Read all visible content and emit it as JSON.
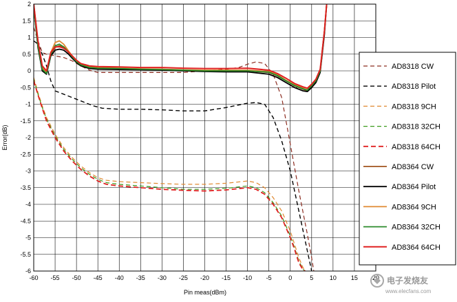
{
  "chart_data": {
    "type": "line",
    "title": "",
    "xlabel": "Pin meas(dBm)",
    "ylabel": "Error(dB)",
    "xlim": [
      -60,
      20
    ],
    "ylim": [
      -6,
      2
    ],
    "x_ticks": [
      -60,
      -55,
      -50,
      -45,
      -40,
      -35,
      -30,
      -25,
      -20,
      -15,
      -10,
      -5,
      0,
      5,
      10,
      15,
      20
    ],
    "x_tick_labels": [
      "-60",
      "-55",
      "-50",
      "-45",
      "-40",
      "-35",
      "-30",
      "-25",
      "-20",
      "-15",
      "-10",
      "-5",
      "0",
      "5",
      "10",
      "15",
      "20"
    ],
    "y_ticks": [
      2,
      1.5,
      1,
      0.5,
      0,
      -0.5,
      -1,
      -1.5,
      -2,
      -2.5,
      -3,
      -3.5,
      -4,
      -4.5,
      -5,
      -5.5,
      -6
    ],
    "y_tick_labels": [
      "2",
      "1.5",
      "1",
      "0.5",
      "0",
      "-0.5",
      "-1",
      "-1.5",
      "-2",
      "-2.5",
      "-3",
      "-3.5",
      "-4",
      "-4.5",
      "-5",
      "-5.5",
      "-6"
    ],
    "grid": true,
    "legend_position": "right",
    "series": [
      {
        "name": "AD8318 CW",
        "color": "#8b2a1e",
        "dash": "6,4",
        "width": 1.2,
        "x": [
          -60,
          -59,
          -58,
          -57,
          -56,
          -55,
          -53,
          -51,
          -49,
          -47,
          -45,
          -40,
          -35,
          -30,
          -25,
          -20,
          -15,
          -12,
          -10,
          -8,
          -6,
          -4,
          -2,
          0,
          2,
          4,
          5,
          5.5
        ],
        "y": [
          1.3,
          0.9,
          0.55,
          0.5,
          0.48,
          0.45,
          0.4,
          0.3,
          0.15,
          0.02,
          -0.05,
          -0.05,
          -0.05,
          -0.05,
          -0.05,
          0.0,
          0.05,
          0.1,
          0.2,
          0.27,
          0.22,
          -0.1,
          -0.8,
          -2.2,
          -3.6,
          -4.9,
          -5.6,
          -6.0
        ]
      },
      {
        "name": "AD8318 Pilot",
        "color": "#000000",
        "dash": "6,4",
        "width": 1.4,
        "x": [
          -60,
          -59,
          -58,
          -57,
          -56,
          -55,
          -54,
          -52,
          -50,
          -48,
          -46,
          -44,
          -40,
          -35,
          -30,
          -25,
          -20,
          -15,
          -10,
          -8,
          -6,
          -4,
          -2,
          0,
          2,
          4,
          5
        ],
        "y": [
          0.9,
          0.8,
          0.5,
          0.15,
          -0.3,
          -0.6,
          -0.65,
          -0.75,
          -0.85,
          -0.95,
          -1.05,
          -1.12,
          -1.15,
          -1.15,
          -1.17,
          -1.2,
          -1.2,
          -1.1,
          -0.97,
          -0.95,
          -1.0,
          -1.4,
          -2.1,
          -3.0,
          -4.2,
          -5.4,
          -6.0
        ]
      },
      {
        "name": "AD8318 9CH",
        "color": "#e08830",
        "dash": "6,4",
        "width": 1.2,
        "x": [
          -60,
          -59,
          -58,
          -57,
          -55,
          -53,
          -51,
          -49,
          -47,
          -45,
          -43,
          -40,
          -35,
          -30,
          -25,
          -20,
          -15,
          -10,
          -8,
          -6,
          -4,
          -2,
          0,
          1,
          2,
          3,
          3.5
        ],
        "y": [
          -0.2,
          -0.65,
          -1.05,
          -1.4,
          -1.9,
          -2.3,
          -2.6,
          -2.85,
          -3.05,
          -3.2,
          -3.28,
          -3.32,
          -3.35,
          -3.38,
          -3.4,
          -3.4,
          -3.37,
          -3.3,
          -3.35,
          -3.5,
          -3.8,
          -4.2,
          -4.8,
          -5.2,
          -5.6,
          -5.9,
          -6.0
        ]
      },
      {
        "name": "AD8318 32CH",
        "color": "#3a9a1a",
        "dash": "6,4",
        "width": 1.2,
        "x": [
          -60,
          -59,
          -58,
          -57,
          -55,
          -53,
          -51,
          -49,
          -47,
          -45,
          -43,
          -40,
          -35,
          -30,
          -25,
          -20,
          -15,
          -10,
          -8,
          -6,
          -4,
          -2,
          0,
          1,
          2,
          3,
          3.5
        ],
        "y": [
          -0.25,
          -0.7,
          -1.1,
          -1.45,
          -1.95,
          -2.35,
          -2.65,
          -2.9,
          -3.1,
          -3.25,
          -3.35,
          -3.4,
          -3.45,
          -3.5,
          -3.55,
          -3.55,
          -3.52,
          -3.45,
          -3.5,
          -3.65,
          -3.95,
          -4.35,
          -4.95,
          -5.3,
          -5.7,
          -5.95,
          -6.0
        ]
      },
      {
        "name": "AD8318 64CH",
        "color": "#e02020",
        "dash": "7,4",
        "width": 1.8,
        "x": [
          -60,
          -59,
          -58,
          -57,
          -55,
          -53,
          -51,
          -49,
          -47,
          -45,
          -43,
          -40,
          -35,
          -30,
          -25,
          -20,
          -15,
          -10,
          -8,
          -6,
          -4,
          -2,
          0,
          1,
          2,
          3,
          3.5
        ],
        "y": [
          -0.3,
          -0.72,
          -1.12,
          -1.5,
          -2.0,
          -2.4,
          -2.7,
          -2.95,
          -3.15,
          -3.3,
          -3.4,
          -3.45,
          -3.5,
          -3.55,
          -3.58,
          -3.6,
          -3.57,
          -3.5,
          -3.55,
          -3.7,
          -4.0,
          -4.4,
          -5.0,
          -5.35,
          -5.75,
          -5.97,
          -6.0
        ]
      },
      {
        "name": "AD8364 CW",
        "color": "#a0521d",
        "dash": "",
        "width": 1.8,
        "x": [
          -60,
          -59,
          -58,
          -57,
          -56,
          -55,
          -54,
          -53,
          -52,
          -51,
          -50,
          -49,
          -47,
          -45,
          -40,
          -35,
          -30,
          -25,
          -20,
          -15,
          -10,
          -5,
          -3,
          -1,
          1,
          3,
          4,
          5,
          6,
          7,
          8,
          8.5
        ],
        "y": [
          2.0,
          0.8,
          0.05,
          -0.05,
          0.5,
          0.7,
          0.75,
          0.72,
          0.6,
          0.45,
          0.3,
          0.2,
          0.1,
          0.08,
          0.07,
          0.05,
          0.05,
          0.02,
          0.0,
          0.0,
          0.0,
          -0.05,
          -0.15,
          -0.3,
          -0.45,
          -0.55,
          -0.6,
          -0.45,
          -0.3,
          0.0,
          1.2,
          2.0
        ]
      },
      {
        "name": "AD8364 Pilot",
        "color": "#000000",
        "dash": "",
        "width": 1.8,
        "x": [
          -60,
          -59,
          -58,
          -57,
          -56,
          -55,
          -54,
          -53,
          -52,
          -51,
          -50,
          -49,
          -47,
          -45,
          -40,
          -35,
          -30,
          -25,
          -20,
          -15,
          -10,
          -5,
          -3,
          -1,
          1,
          3,
          4,
          5,
          6,
          7,
          8,
          8.5
        ],
        "y": [
          1.9,
          0.7,
          0.0,
          -0.1,
          0.45,
          0.62,
          0.65,
          0.62,
          0.52,
          0.38,
          0.25,
          0.15,
          0.07,
          0.05,
          0.04,
          0.03,
          0.02,
          0.0,
          -0.02,
          -0.03,
          -0.03,
          -0.1,
          -0.2,
          -0.35,
          -0.5,
          -0.6,
          -0.62,
          -0.5,
          -0.35,
          -0.05,
          1.1,
          2.0
        ]
      },
      {
        "name": "AD8364 9CH",
        "color": "#e08830",
        "dash": "",
        "width": 1.8,
        "x": [
          -60,
          -59,
          -58,
          -57,
          -56,
          -55,
          -54,
          -53,
          -52,
          -51,
          -50,
          -49,
          -47,
          -45,
          -40,
          -35,
          -30,
          -25,
          -20,
          -15,
          -10,
          -5,
          -3,
          -1,
          1,
          3,
          4,
          5,
          6,
          7,
          8,
          8.5
        ],
        "y": [
          2.0,
          0.85,
          0.1,
          -0.05,
          0.55,
          0.85,
          0.9,
          0.8,
          0.62,
          0.45,
          0.3,
          0.2,
          0.12,
          0.1,
          0.08,
          0.06,
          0.05,
          0.03,
          0.02,
          0.02,
          0.02,
          -0.02,
          -0.12,
          -0.28,
          -0.42,
          -0.52,
          -0.57,
          -0.42,
          -0.28,
          0.02,
          1.2,
          2.0
        ]
      },
      {
        "name": "AD8364 32CH",
        "color": "#2a8a2a",
        "dash": "",
        "width": 1.8,
        "x": [
          -60,
          -59,
          -58,
          -57,
          -56,
          -55,
          -54,
          -53,
          -52,
          -51,
          -50,
          -49,
          -47,
          -45,
          -40,
          -35,
          -30,
          -25,
          -20,
          -15,
          -10,
          -5,
          -3,
          -1,
          1,
          3,
          4,
          5,
          6,
          7,
          8,
          8.5
        ],
        "y": [
          1.9,
          0.75,
          0.05,
          -0.08,
          0.5,
          0.75,
          0.8,
          0.72,
          0.58,
          0.42,
          0.28,
          0.18,
          0.1,
          0.08,
          0.07,
          0.05,
          0.04,
          0.02,
          0.0,
          0.0,
          0.0,
          -0.04,
          -0.14,
          -0.3,
          -0.44,
          -0.54,
          -0.58,
          -0.44,
          -0.3,
          0.0,
          1.2,
          2.0
        ]
      },
      {
        "name": "AD8364 64CH",
        "color": "#e02020",
        "dash": "",
        "width": 2.0,
        "x": [
          -60,
          -59,
          -58,
          -57,
          -56,
          -55,
          -54,
          -53,
          -52,
          -51,
          -50,
          -49,
          -47,
          -45,
          -40,
          -35,
          -30,
          -25,
          -20,
          -15,
          -10,
          -5,
          -3,
          -1,
          1,
          3,
          4,
          5,
          6,
          7,
          8,
          8.5
        ],
        "y": [
          2.0,
          0.9,
          0.15,
          0.0,
          0.55,
          0.72,
          0.72,
          0.68,
          0.58,
          0.45,
          0.32,
          0.22,
          0.15,
          0.13,
          0.12,
          0.1,
          0.1,
          0.08,
          0.07,
          0.07,
          0.08,
          0.02,
          -0.08,
          -0.22,
          -0.38,
          -0.48,
          -0.52,
          -0.4,
          -0.25,
          0.05,
          1.2,
          2.0
        ]
      }
    ]
  },
  "watermark": {
    "title": "电子发烧友",
    "url": "www.elecfans.com"
  }
}
